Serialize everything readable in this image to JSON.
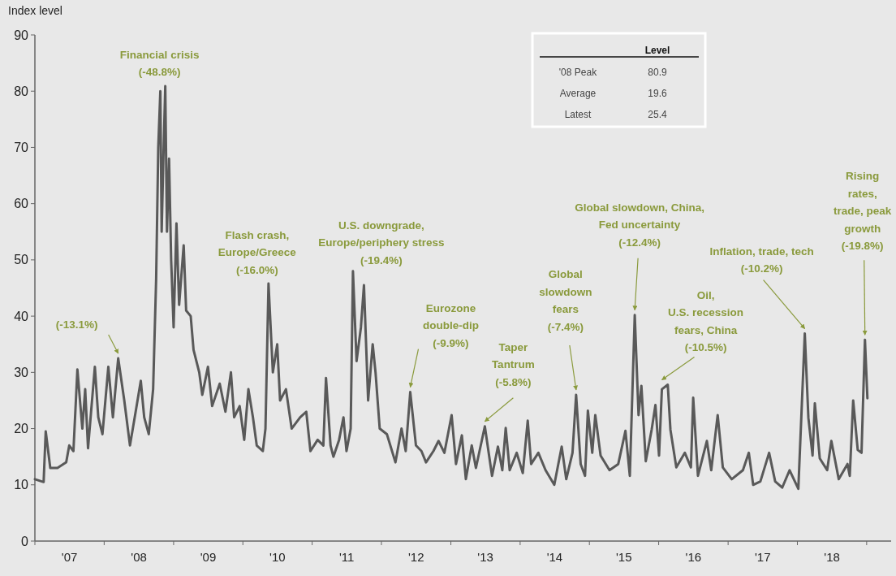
{
  "chart_data": {
    "type": "line",
    "ylabel": "Index level",
    "x": [
      "2007-01-01",
      "2007-02-16",
      "2007-02-27",
      "2007-03-23",
      "2007-04-30",
      "2007-06-15",
      "2007-07-01",
      "2007-07-23",
      "2007-08-13",
      "2007-09-08",
      "2007-09-23",
      "2007-10-08",
      "2007-11-13",
      "2007-12-01",
      "2007-12-23",
      "2008-01-23",
      "2008-02-16",
      "2008-03-15",
      "2008-04-16",
      "2008-05-16",
      "2008-06-15",
      "2008-07-12",
      "2008-07-30",
      "2008-08-23",
      "2008-09-15",
      "2008-10-01",
      "2008-10-12",
      "2008-10-23",
      "2008-10-30",
      "2008-11-08",
      "2008-11-18",
      "2008-11-27",
      "2008-12-08",
      "2008-12-19",
      "2009-01-01",
      "2009-01-16",
      "2009-01-30",
      "2009-02-23",
      "2009-03-08",
      "2009-04-01",
      "2009-04-16",
      "2009-05-16",
      "2009-06-01",
      "2009-07-01",
      "2009-07-23",
      "2009-09-01",
      "2009-10-01",
      "2009-10-30",
      "2009-11-16",
      "2009-12-15",
      "2010-01-08",
      "2010-01-30",
      "2010-02-23",
      "2010-03-15",
      "2010-04-16",
      "2010-04-30",
      "2010-05-16",
      "2010-06-08",
      "2010-07-01",
      "2010-07-16",
      "2010-08-16",
      "2010-09-15",
      "2010-10-30",
      "2010-12-01",
      "2010-12-23",
      "2011-01-30",
      "2011-03-01",
      "2011-03-15",
      "2011-04-08",
      "2011-04-23",
      "2011-05-23",
      "2011-06-15",
      "2011-07-01",
      "2011-07-23",
      "2011-08-04",
      "2011-08-23",
      "2011-09-15",
      "2011-10-01",
      "2011-10-23",
      "2011-11-16",
      "2011-12-01",
      "2011-12-23",
      "2012-01-30",
      "2012-03-15",
      "2012-04-16",
      "2012-05-08",
      "2012-06-01",
      "2012-07-01",
      "2012-07-30",
      "2012-08-23",
      "2012-10-01",
      "2012-10-28",
      "2012-11-28",
      "2013-01-05",
      "2013-01-28",
      "2013-02-28",
      "2013-03-21",
      "2013-04-21",
      "2013-05-13",
      "2013-06-29",
      "2013-08-06",
      "2013-09-06",
      "2013-09-29",
      "2013-10-17",
      "2013-11-07",
      "2013-12-14",
      "2014-01-15",
      "2014-02-10",
      "2014-02-28",
      "2014-04-07",
      "2014-05-15",
      "2014-06-30",
      "2014-08-08",
      "2014-09-01",
      "2014-10-04",
      "2014-10-23",
      "2014-11-16",
      "2014-12-09",
      "2014-12-24",
      "2015-01-16",
      "2015-02-01",
      "2015-03-01",
      "2015-04-17",
      "2015-06-02",
      "2015-07-10",
      "2015-08-02",
      "2015-08-28",
      "2015-09-17",
      "2015-10-02",
      "2015-10-25",
      "2015-11-25",
      "2015-12-15",
      "2016-01-03",
      "2016-01-18",
      "2016-02-18",
      "2016-03-03",
      "2016-04-03",
      "2016-05-18",
      "2016-06-19",
      "2016-07-01",
      "2016-07-26",
      "2016-09-11",
      "2016-10-04",
      "2016-11-07",
      "2016-12-04",
      "2017-01-20",
      "2017-03-20",
      "2017-04-20",
      "2017-05-13",
      "2017-06-20",
      "2017-08-05",
      "2017-09-06",
      "2017-10-13",
      "2017-11-21",
      "2018-01-06",
      "2018-02-09",
      "2018-02-28",
      "2018-03-22",
      "2018-04-03",
      "2018-04-29",
      "2018-06-07",
      "2018-06-29",
      "2018-08-07",
      "2018-09-22",
      "2018-10-04",
      "2018-10-22",
      "2018-11-15",
      "2018-12-05",
      "2018-12-23",
      "2019-01-05"
    ],
    "series": [
      {
        "color": "#595959",
        "values": [
          11,
          10.5,
          19.5,
          13,
          13,
          14,
          17,
          16,
          30.5,
          20,
          27,
          16.5,
          31,
          22,
          19,
          31,
          22,
          32.5,
          25,
          17,
          23,
          28.5,
          22,
          19,
          27,
          46.7,
          70,
          80,
          55,
          68,
          80.9,
          55,
          68,
          50,
          38,
          56.5,
          42,
          52.6,
          41,
          40,
          34,
          30,
          26,
          31,
          24,
          28,
          23,
          30,
          22,
          24,
          18,
          27,
          22,
          17,
          16,
          20,
          45.8,
          30,
          35,
          25,
          27,
          20,
          22,
          23,
          16,
          18,
          17,
          29,
          17,
          15,
          18,
          22,
          16,
          20,
          48,
          32,
          38,
          45.5,
          25,
          35,
          30,
          20,
          19,
          14,
          20,
          16,
          26.5,
          17,
          16,
          14,
          16,
          17.8,
          15.7,
          22.4,
          13.7,
          18.8,
          11,
          17,
          13,
          20.4,
          11.6,
          16.8,
          12.6,
          20.1,
          12.6,
          15.7,
          12.1,
          21.4,
          13.7,
          15.7,
          12.6,
          10,
          16.8,
          11,
          15.7,
          26,
          13.7,
          11.6,
          23.2,
          15.7,
          22.4,
          15.2,
          12.6,
          13.7,
          19.6,
          11.6,
          40.2,
          22.4,
          27.6,
          14.2,
          19.8,
          24.2,
          15.2,
          27,
          27.8,
          19.8,
          13.1,
          15.7,
          13.1,
          25.5,
          11.6,
          17.8,
          12.6,
          22.4,
          13.1,
          11,
          12.6,
          15.7,
          10,
          10.6,
          15.7,
          10.6,
          9.5,
          12.6,
          9.3,
          36.9,
          21.9,
          15.2,
          24.5,
          14.7,
          12.6,
          17.8,
          11,
          13.7,
          11.6,
          25,
          16.2,
          15.7,
          35.8,
          25.4
        ]
      }
    ],
    "xlim": [
      "2007-01-01",
      "2019-05-10"
    ],
    "xticks": [
      {
        "value": "2007-01-01",
        "label": null
      },
      {
        "value": "2008-01-01",
        "label": null
      },
      {
        "value": "2009-01-01",
        "label": null
      },
      {
        "value": "2010-01-01",
        "label": null
      },
      {
        "value": "2011-01-01",
        "label": null
      },
      {
        "value": "2012-01-01",
        "label": null
      },
      {
        "value": "2013-01-01",
        "label": null
      },
      {
        "value": "2014-01-01",
        "label": null
      },
      {
        "value": "2015-01-01",
        "label": null
      },
      {
        "value": "2016-01-01",
        "label": null
      },
      {
        "value": "2017-01-01",
        "label": null
      },
      {
        "value": "2018-01-01",
        "label": null
      },
      {
        "value": "2019-01-01",
        "label": null
      },
      {
        "value": "2007-07-02",
        "label": "'07"
      },
      {
        "value": "2008-07-02",
        "label": "'08"
      },
      {
        "value": "2009-07-02",
        "label": "'09"
      },
      {
        "value": "2010-07-02",
        "label": "'10"
      },
      {
        "value": "2011-07-02",
        "label": "'11"
      },
      {
        "value": "2012-07-02",
        "label": "'12"
      },
      {
        "value": "2013-07-02",
        "label": "'13"
      },
      {
        "value": "2014-07-02",
        "label": "'14"
      },
      {
        "value": "2015-07-02",
        "label": "'15"
      },
      {
        "value": "2016-07-02",
        "label": "'16"
      },
      {
        "value": "2017-07-02",
        "label": "'17"
      },
      {
        "value": "2018-07-02",
        "label": "'18"
      }
    ],
    "ylim": [
      0,
      90
    ],
    "yticks": [
      0,
      10,
      20,
      30,
      40,
      50,
      60,
      70,
      80,
      90
    ],
    "grid": false,
    "marker": "none",
    "line_style": "solid",
    "annotations": [
      {
        "text": "Financial crisis\n(-48.8%)",
        "x": "2008-11-18",
        "y": 80.9
      },
      {
        "text": "(-13.1%)",
        "x": "2008-03-15",
        "y": 32.5
      },
      {
        "text": "Flash crash,\nEurope/Greece\n(-16.0%)",
        "x": "2010-05-16",
        "y": 45.8
      },
      {
        "text": "U.S. downgrade,\nEurope/periphery stress\n(-19.4%)",
        "x": "2011-08-04",
        "y": 48
      },
      {
        "text": "Eurozone\ndouble-dip\n(-9.9%)",
        "x": "2012-06-01",
        "y": 26.5
      },
      {
        "text": "Taper\nTantrum\n(-5.8%)",
        "x": "2013-06-29",
        "y": 20.4
      },
      {
        "text": "Global\nslowdown\nfears\n(-7.4%)",
        "x": "2014-10-23",
        "y": 26
      },
      {
        "text": "Global slowdown, China,\nFed uncertainty\n(-12.4%)",
        "x": "2015-08-28",
        "y": 40.2
      },
      {
        "text": "Oil,\nU.S. recession\nfears, China\n(-10.5%)",
        "x": "2016-01-18",
        "y": 27.8
      },
      {
        "text": "Inflation, trade, tech\n(-10.2%)",
        "x": "2018-02-09",
        "y": 36.9
      },
      {
        "text": "Rising\nrates,\ntrade, peak\ngrowth\n(-19.8%)",
        "x": "2018-12-23",
        "y": 35.8
      },
      "Level",
      "'08 Peak",
      "80.9",
      "Average",
      "19.6",
      "Latest",
      "25.4"
    ]
  }
}
